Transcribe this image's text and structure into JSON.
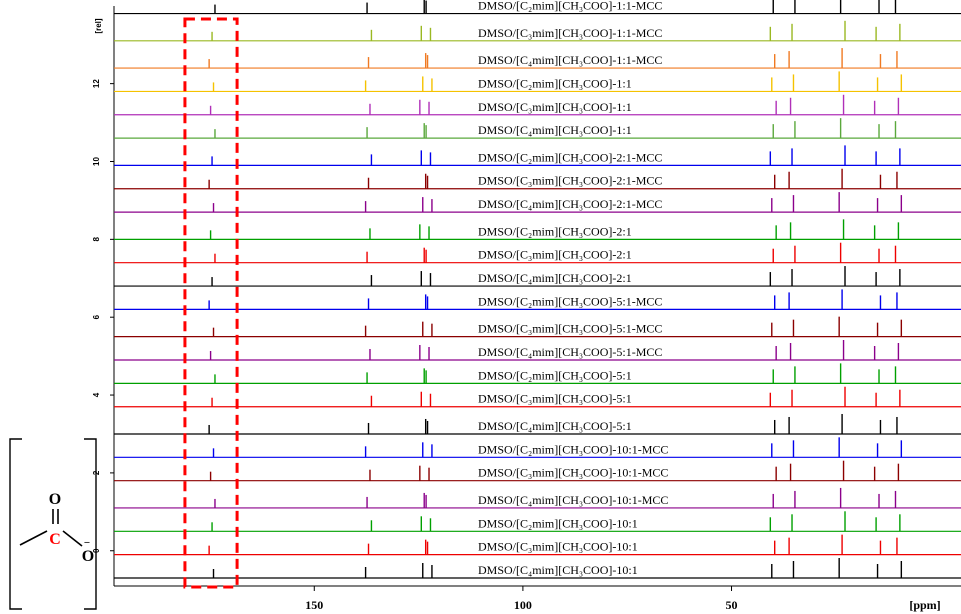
{
  "chart_data": {
    "type": "line",
    "title": "",
    "xlabel": "[ppm]",
    "ylabel": "[rel]",
    "x_axis_ticks": [
      150,
      100,
      50
    ],
    "y_axis_ticks": [
      0,
      2,
      4,
      6,
      8,
      10,
      12
    ],
    "xlim": [
      198,
      -5
    ],
    "ylim": [
      -0.7,
      14.2
    ],
    "grid": false,
    "highlight_region_ppm": [
      168.5,
      181
    ],
    "highlight_color": "#ff0000",
    "peak_positions_ppm": {
      "carbonyl": 174.5,
      "imidazolium_C2": 137.0,
      "imidazolium_C4": 124.0,
      "imidazolium_C5": 122.5,
      "ch3_dmso_and_acetate": [
        40.0,
        35.5,
        23.5,
        15.0,
        10.0
      ]
    },
    "series": [
      {
        "name": "DMSO/[C₂mim][CH₃COO]-1:1-MCC",
        "color": "#000000",
        "baseline": 13.8
      },
      {
        "name": "DMSO/[C₃mim][CH₃COO]-1:1-MCC",
        "color": "#9ab822",
        "baseline": 13.1
      },
      {
        "name": "DMSO/[C₄mim][CH₃COO]-1:1-MCC",
        "color": "#f07a22",
        "baseline": 12.4
      },
      {
        "name": "DMSO/[C₂mim][CH₃COO]-1:1",
        "color": "#f5c200",
        "baseline": 11.8
      },
      {
        "name": "DMSO/[C₃mim][CH₃COO]-1:1",
        "color": "#b030b8",
        "baseline": 11.2
      },
      {
        "name": "DMSO/[C₄mim][CH₃COO]-1:1",
        "color": "#5aa83c",
        "baseline": 10.6
      },
      {
        "name": "DMSO/[C₂mim][CH₃COO]-2:1-MCC",
        "color": "#0000ee",
        "baseline": 9.9
      },
      {
        "name": "DMSO/[C₃mim][CH₃COO]-2:1-MCC",
        "color": "#8b0000",
        "baseline": 9.3
      },
      {
        "name": "DMSO/[C₄mim][CH₃COO]-2:1-MCC",
        "color": "#8b008b",
        "baseline": 8.7
      },
      {
        "name": "DMSO/[C₂mim][CH₃COO]-2:1",
        "color": "#00a000",
        "baseline": 8.0
      },
      {
        "name": "DMSO/[C₃mim][CH₃COO]-2:1",
        "color": "#ee0000",
        "baseline": 7.4
      },
      {
        "name": "DMSO/[C₄mim][CH₃COO]-2:1",
        "color": "#000000",
        "baseline": 6.8
      },
      {
        "name": "DMSO/[C₂mim][CH₃COO]-5:1-MCC",
        "color": "#0000ee",
        "baseline": 6.2
      },
      {
        "name": "DMSO/[C₃mim][CH₃COO]-5:1-MCC",
        "color": "#8b0000",
        "baseline": 5.5
      },
      {
        "name": "DMSO/[C₄mim][CH₃COO]-5:1-MCC",
        "color": "#8b008b",
        "baseline": 4.9
      },
      {
        "name": "DMSO/[C₂mim][CH₃COO]-5:1",
        "color": "#00a000",
        "baseline": 4.3
      },
      {
        "name": "DMSO/[C₃mim][CH₃COO]-5:1",
        "color": "#ee0000",
        "baseline": 3.7
      },
      {
        "name": "DMSO/[C₄mim][CH₃COO]-5:1",
        "color": "#000000",
        "baseline": 3.0
      },
      {
        "name": "DMSO/[C₂mim][CH₃COO]-10:1-MCC",
        "color": "#0000ee",
        "baseline": 2.4
      },
      {
        "name": "DMSO/[C₃mim][CH₃COO]-10:1-MCC",
        "color": "#8b0000",
        "baseline": 1.8
      },
      {
        "name": "DMSO/[C₄mim][CH₃COO]-10:1-MCC",
        "color": "#8b008b",
        "baseline": 1.1
      },
      {
        "name": "DMSO/[C₂mim][CH₃COO]-10:1",
        "color": "#00a000",
        "baseline": 0.5
      },
      {
        "name": "DMSO/[C₃mim][CH₃COO]-10:1",
        "color": "#ee0000",
        "baseline": -0.1
      },
      {
        "name": "DMSO/[C₄mim][CH₃COO]-10:1",
        "color": "#000000",
        "baseline": -0.7
      }
    ]
  },
  "structure": {
    "atoms": [
      "O",
      "C",
      "O",
      "−"
    ]
  }
}
